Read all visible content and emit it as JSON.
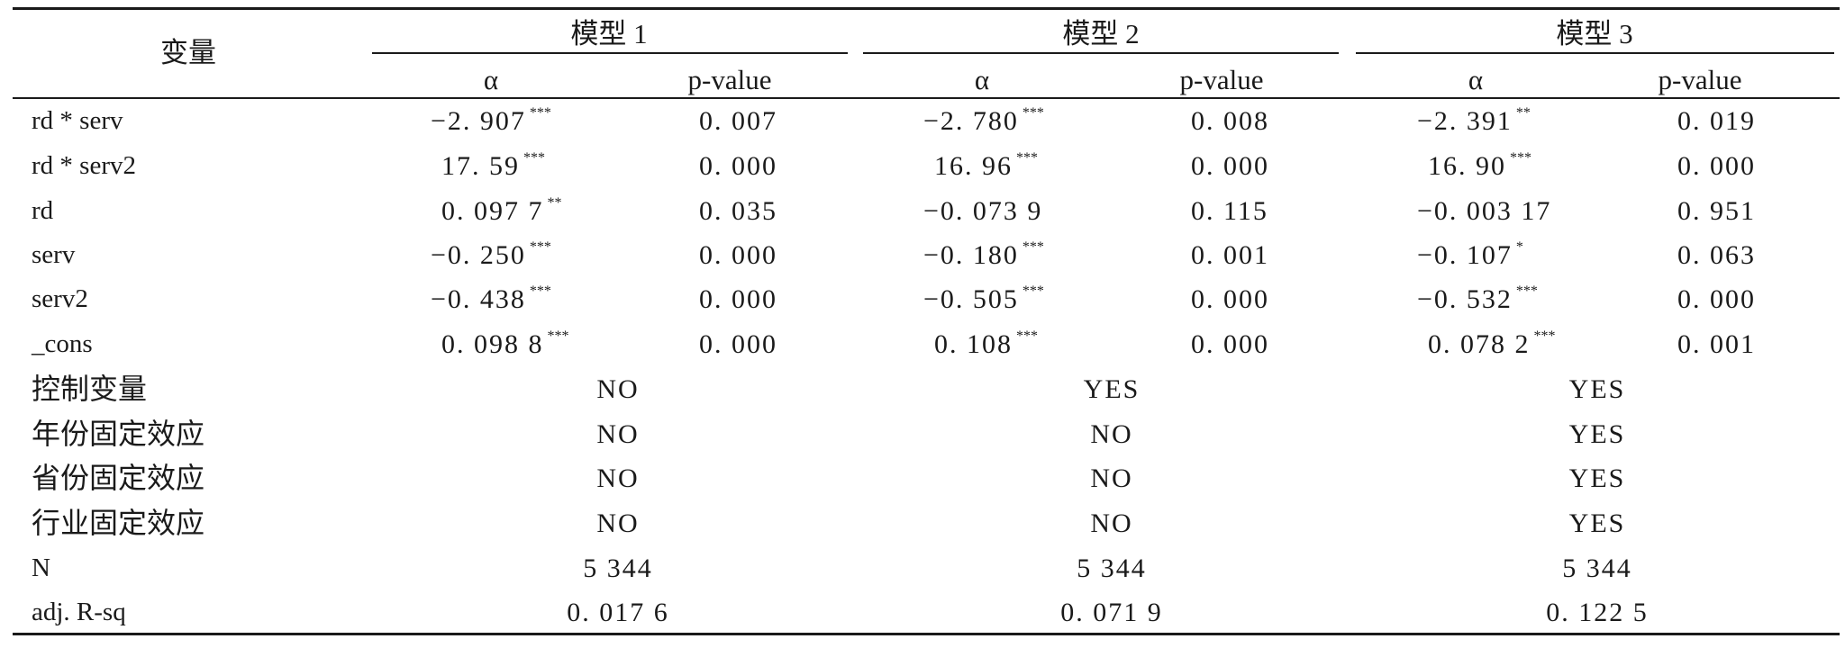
{
  "header": {
    "variable_label": "变量",
    "models": [
      {
        "title": "模型 1",
        "coef_label": "α",
        "p_label": "p-value"
      },
      {
        "title": "模型 2",
        "coef_label": "α",
        "p_label": "p-value"
      },
      {
        "title": "模型 3",
        "coef_label": "α",
        "p_label": "p-value"
      }
    ]
  },
  "coef_rows": [
    {
      "name": "rd * serv",
      "cells": [
        {
          "coef": "−2. 907",
          "stars": "***",
          "p": "0. 007"
        },
        {
          "coef": "−2. 780",
          "stars": "***",
          "p": "0. 008"
        },
        {
          "coef": "−2. 391",
          "stars": "**",
          "p": "0. 019"
        }
      ]
    },
    {
      "name": "rd * serv2",
      "cells": [
        {
          "coef": "17. 59",
          "stars": "***",
          "p": "0. 000"
        },
        {
          "coef": "16. 96",
          "stars": "***",
          "p": "0. 000"
        },
        {
          "coef": "16. 90",
          "stars": "***",
          "p": "0. 000"
        }
      ]
    },
    {
      "name": "rd",
      "cells": [
        {
          "coef": "0. 097 7",
          "stars": "**",
          "p": "0. 035"
        },
        {
          "coef": "−0. 073 9",
          "stars": "",
          "p": "0. 115"
        },
        {
          "coef": "−0. 003 17",
          "stars": "",
          "p": "0. 951"
        }
      ]
    },
    {
      "name": "serv",
      "cells": [
        {
          "coef": "−0. 250",
          "stars": "***",
          "p": "0. 000"
        },
        {
          "coef": "−0. 180",
          "stars": "***",
          "p": "0. 001"
        },
        {
          "coef": "−0. 107",
          "stars": "*",
          "p": "0. 063"
        }
      ]
    },
    {
      "name": "serv2",
      "cells": [
        {
          "coef": "−0. 438",
          "stars": "***",
          "p": "0. 000"
        },
        {
          "coef": "−0. 505",
          "stars": "***",
          "p": "0. 000"
        },
        {
          "coef": "−0. 532",
          "stars": "***",
          "p": "0. 000"
        }
      ]
    },
    {
      "name": "_cons",
      "cells": [
        {
          "coef": "0. 098 8",
          "stars": "***",
          "p": "0. 000"
        },
        {
          "coef": "0. 108",
          "stars": "***",
          "p": "0. 000"
        },
        {
          "coef": "0. 078 2",
          "stars": "***",
          "p": "0. 001"
        }
      ]
    }
  ],
  "summary_rows": [
    {
      "name": "控制变量",
      "values": [
        "NO",
        "YES",
        "YES"
      ]
    },
    {
      "name": "年份固定效应",
      "values": [
        "NO",
        "NO",
        "YES"
      ]
    },
    {
      "name": "省份固定效应",
      "values": [
        "NO",
        "NO",
        "YES"
      ]
    },
    {
      "name": "行业固定效应",
      "values": [
        "NO",
        "NO",
        "YES"
      ]
    },
    {
      "name": "N",
      "values": [
        "5 344",
        "5 344",
        "5 344"
      ]
    },
    {
      "name": "adj. R-sq",
      "values": [
        "0. 017 6",
        "0. 071 9",
        "0. 122 5"
      ]
    }
  ]
}
